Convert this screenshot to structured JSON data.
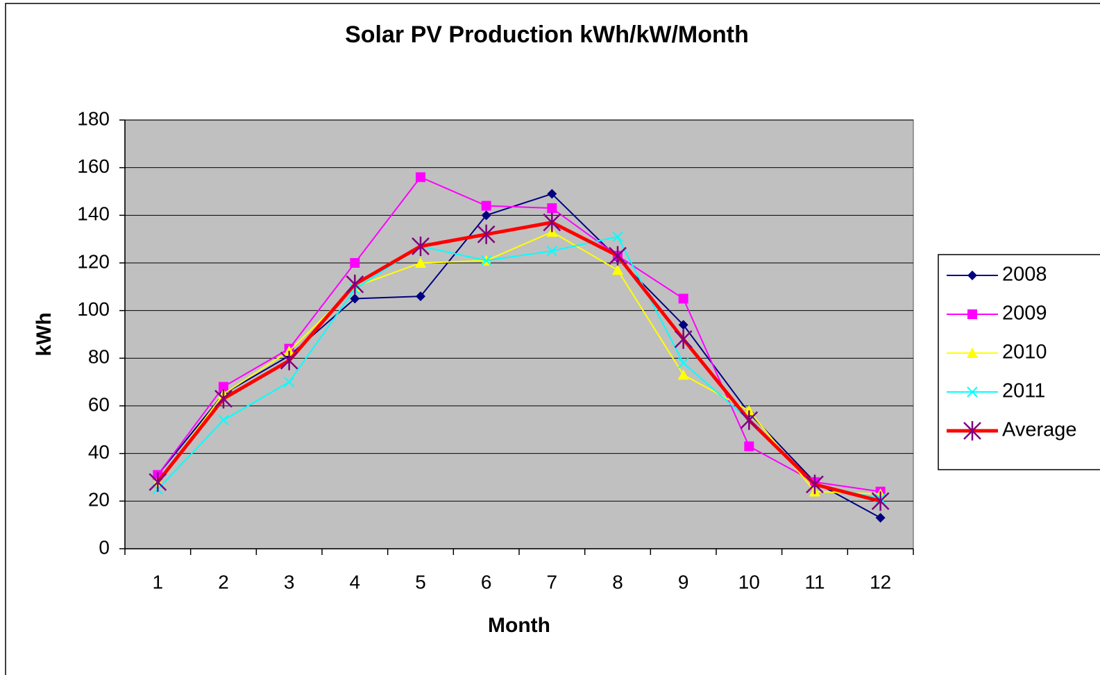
{
  "chart_data": {
    "type": "line",
    "title": "Solar PV Production kWh/kW/Month",
    "x_label": "Month",
    "y_label": "kWh",
    "categories": [
      "1",
      "2",
      "3",
      "4",
      "5",
      "6",
      "7",
      "8",
      "9",
      "10",
      "11",
      "12"
    ],
    "series": [
      {
        "name": "2008",
        "color": "#000080",
        "marker": "diamond",
        "values": [
          31,
          65,
          81,
          105,
          106,
          140,
          149,
          122,
          94,
          57,
          28,
          13
        ]
      },
      {
        "name": "2009",
        "color": "#ff00ff",
        "marker": "square",
        "values": [
          31,
          68,
          84,
          120,
          156,
          144,
          143,
          123,
          105,
          43,
          28,
          24
        ]
      },
      {
        "name": "2010",
        "color": "#ffff00",
        "marker": "triangle",
        "values": [
          28,
          65,
          83,
          110,
          120,
          121,
          133,
          117,
          73,
          58,
          24,
          23
        ]
      },
      {
        "name": "2011",
        "color": "#00ffff",
        "marker": "x",
        "values": [
          25,
          54,
          70,
          109,
          127,
          121,
          125,
          131,
          78,
          54,
          27,
          21
        ]
      },
      {
        "name": "Average",
        "color": "#ff0000",
        "marker": "star",
        "marker_color": "#800080",
        "line_width": 5,
        "values": [
          28,
          63,
          79,
          111,
          127,
          132,
          137,
          123,
          88,
          54,
          27,
          20
        ]
      }
    ],
    "ylim": [
      0,
      180
    ],
    "yticks": [
      0,
      20,
      40,
      60,
      80,
      100,
      120,
      140,
      160,
      180
    ],
    "grid": true,
    "plot_background": "#c0c0c0",
    "legend": "right"
  }
}
